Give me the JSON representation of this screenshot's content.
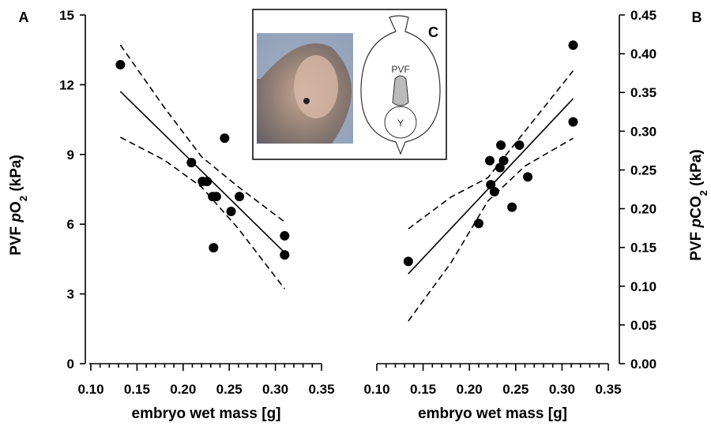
{
  "chart_data": [
    {
      "type": "scatter",
      "panel": "A",
      "xlabel": "embryo wet mass [g]",
      "ylabel": [
        "PVF ",
        "p",
        "O",
        "2",
        " (kPa)"
      ],
      "xlim": [
        0.1,
        0.35
      ],
      "ylim": [
        0,
        15
      ],
      "axis_side": "left",
      "color": "#000000",
      "xticks": [
        {
          "value": 0.1,
          "label": "0.10"
        },
        {
          "value": 0.15,
          "label": "0.15"
        },
        {
          "value": 0.2,
          "label": "0.20"
        },
        {
          "value": 0.25,
          "label": "0.25"
        },
        {
          "value": 0.3,
          "label": "0.30"
        },
        {
          "value": 0.35,
          "label": "0.35"
        }
      ],
      "xminorticks": [
        0.11,
        0.12,
        0.13,
        0.14,
        0.16,
        0.17,
        0.18,
        0.19,
        0.21,
        0.22,
        0.23,
        0.24,
        0.26,
        0.27,
        0.28,
        0.29,
        0.31,
        0.32,
        0.33,
        0.34
      ],
      "yticks": [
        0,
        3,
        6,
        9,
        12,
        15
      ],
      "points": {
        "x": [
          0.132,
          0.209,
          0.221,
          0.226,
          0.232,
          0.236,
          0.245,
          0.233,
          0.252,
          0.261,
          0.31,
          0.31
        ],
        "y": [
          12.86,
          8.65,
          7.84,
          7.84,
          7.19,
          7.19,
          9.7,
          4.99,
          6.55,
          7.19,
          5.5,
          4.68
        ]
      },
      "fit": {
        "x": [
          0.132,
          0.31
        ],
        "y": [
          11.71,
          4.78
        ]
      },
      "ci_upper": {
        "x": [
          0.132,
          0.18,
          0.22,
          0.26,
          0.31
        ],
        "y": [
          13.71,
          11.0,
          8.9,
          7.6,
          6.1
        ]
      },
      "ci_lower": {
        "x": [
          0.132,
          0.18,
          0.22,
          0.26,
          0.31
        ],
        "y": [
          9.74,
          8.75,
          7.6,
          5.8,
          3.22
        ]
      }
    },
    {
      "type": "scatter",
      "panel": "B",
      "xlabel": "embryo wet mass [g]",
      "ylabel": [
        "PVF ",
        "p",
        "CO",
        "2",
        " (kPa)"
      ],
      "xlim": [
        0.1,
        0.35
      ],
      "ylim": [
        0,
        0.45
      ],
      "axis_side": "right",
      "color": "#000000",
      "xticks": [
        {
          "value": 0.1,
          "label": "0.10"
        },
        {
          "value": 0.15,
          "label": "0.15"
        },
        {
          "value": 0.2,
          "label": "0.20"
        },
        {
          "value": 0.25,
          "label": "0.25"
        },
        {
          "value": 0.3,
          "label": "0.30"
        },
        {
          "value": 0.35,
          "label": "0.35"
        }
      ],
      "xminorticks": [
        0.11,
        0.12,
        0.13,
        0.14,
        0.16,
        0.17,
        0.18,
        0.19,
        0.21,
        0.22,
        0.23,
        0.24,
        0.26,
        0.27,
        0.28,
        0.29,
        0.31,
        0.32,
        0.33,
        0.34
      ],
      "yticks": [
        {
          "value": 0,
          "label": "0.00"
        },
        {
          "value": 0.05,
          "label": "0.05"
        },
        {
          "value": 0.1,
          "label": "0.10"
        },
        {
          "value": 0.15,
          "label": "0.15"
        },
        {
          "value": 0.2,
          "label": "0.20"
        },
        {
          "value": 0.25,
          "label": "0.25"
        },
        {
          "value": 0.3,
          "label": "0.30"
        },
        {
          "value": 0.35,
          "label": "0.35"
        },
        {
          "value": 0.4,
          "label": "0.40"
        },
        {
          "value": 0.45,
          "label": "0.45"
        }
      ],
      "points": {
        "x": [
          0.134,
          0.21,
          0.222,
          0.223,
          0.227,
          0.234,
          0.233,
          0.237,
          0.246,
          0.254,
          0.263,
          0.312,
          0.312
        ],
        "y": [
          0.132,
          0.181,
          0.262,
          0.231,
          0.222,
          0.282,
          0.253,
          0.262,
          0.202,
          0.282,
          0.241,
          0.411,
          0.312
        ]
      },
      "fit": {
        "x": [
          0.134,
          0.312
        ],
        "y": [
          0.116,
          0.342
        ]
      },
      "ci_upper": {
        "x": [
          0.134,
          0.18,
          0.22,
          0.26,
          0.312
        ],
        "y": [
          0.174,
          0.215,
          0.24,
          0.3,
          0.378
        ]
      },
      "ci_lower": {
        "x": [
          0.134,
          0.18,
          0.22,
          0.26,
          0.312
        ],
        "y": [
          0.055,
          0.13,
          0.21,
          0.255,
          0.291
        ]
      }
    }
  ],
  "inset": {
    "label": "C",
    "diagram_labels": [
      "PVF",
      "Y"
    ]
  }
}
